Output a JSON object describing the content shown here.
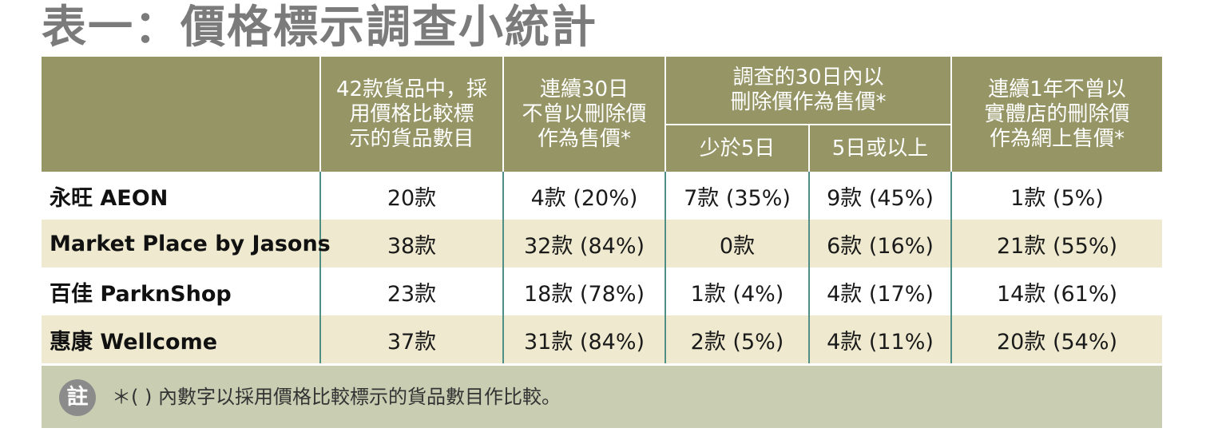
{
  "title": "表一：價格標示調查小統計",
  "headers": {
    "col1": [
      "42款貨品中，採",
      "用價格比較標",
      "示的貨品數目"
    ],
    "col2": [
      "連續30日",
      "不曾以刪除價",
      "作為售價*"
    ],
    "col3_group": [
      "調查的30日內以",
      "刪除價作為售價*"
    ],
    "col3a": "少於5日",
    "col3b": "5日或以上",
    "col4": [
      "連續1年不曾以",
      "實體店的刪除價",
      "作為網上售價*"
    ]
  },
  "rows": [
    {
      "brand": "永旺 AEON",
      "c1": "20款",
      "c2": "4款 (20%)",
      "c3": "7款 (35%)",
      "c4": "9款 (45%)",
      "c5": "1款 (5%)"
    },
    {
      "brand": "Market Place by Jasons",
      "c1": "38款",
      "c2": "32款 (84%)",
      "c3": "0款",
      "c4": "6款 (16%)",
      "c5": "21款 (55%)"
    },
    {
      "brand": "百佳 ParknShop",
      "c1": "23款",
      "c2": "18款 (78%)",
      "c3": "1款 (4%)",
      "c4": "4款 (17%)",
      "c5": "14款 (61%)"
    },
    {
      "brand": "惠康 Wellcome",
      "c1": "37款",
      "c2": "31款 (84%)",
      "c3": "2款 (5%)",
      "c4": "4款 (11%)",
      "c5": "20款 (54%)"
    }
  ],
  "note": {
    "icon_label": "註",
    "text": "＊( ) 內數字以採用價格比較標示的貨品數目作比較。"
  },
  "colors": {
    "header_bg": "#959566",
    "alt_row_bg": "#efeacf",
    "note_bg": "#c9cdb2",
    "divider": "#4f8f85",
    "title": "#7b7b7b"
  }
}
